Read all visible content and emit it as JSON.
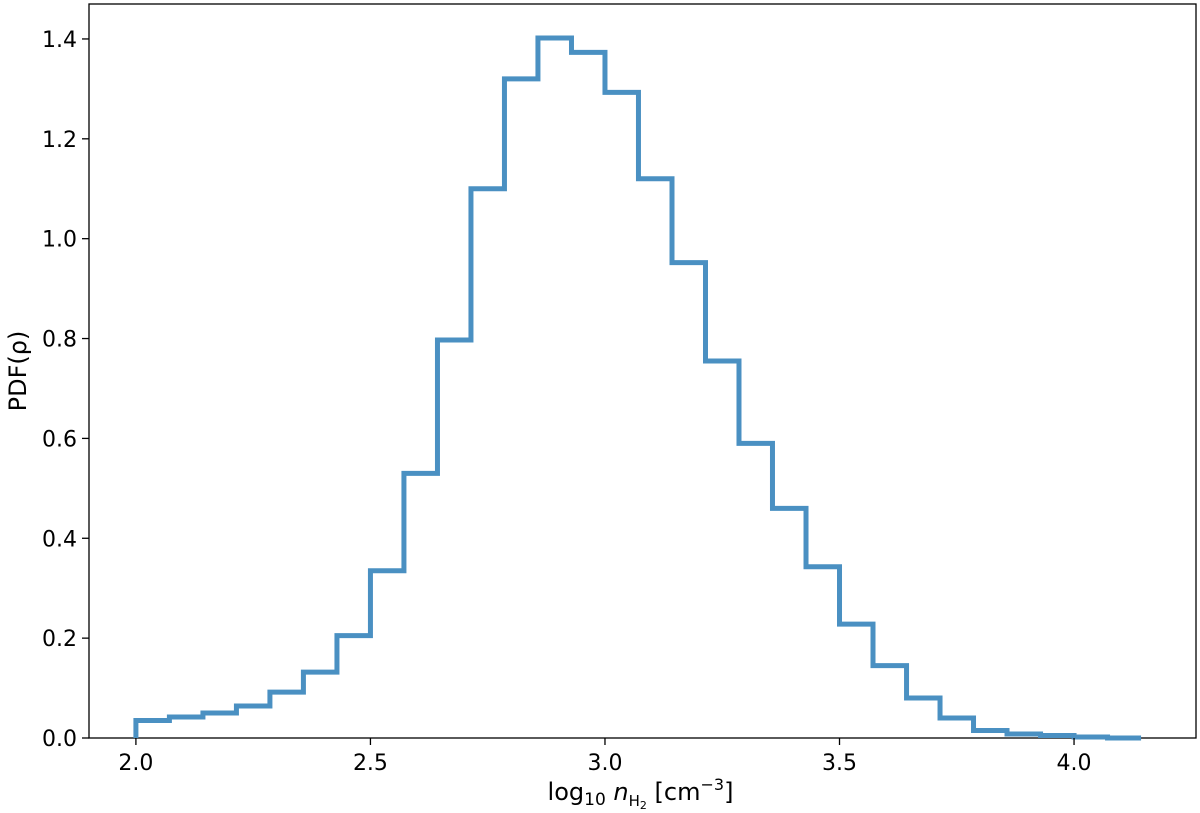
{
  "chart_data": {
    "type": "histogram",
    "style": "step",
    "color": "#4a90c2",
    "x_scale": "log10",
    "bin_edges": [
      2.0,
      2.0714,
      2.1429,
      2.2143,
      2.2857,
      2.3571,
      2.4286,
      2.5,
      2.5714,
      2.6429,
      2.7143,
      2.7857,
      2.8571,
      2.9286,
      3.0,
      3.0714,
      3.1429,
      3.2143,
      3.2857,
      3.3571,
      3.4286,
      3.5,
      3.5714,
      3.6429,
      3.7143,
      3.7857,
      3.8571,
      3.9286,
      4.0,
      4.0714,
      4.1429
    ],
    "values": [
      0.035,
      0.042,
      0.05,
      0.064,
      0.092,
      0.132,
      0.205,
      0.335,
      0.53,
      0.797,
      1.1,
      1.32,
      1.402,
      1.373,
      1.293,
      1.12,
      0.952,
      0.755,
      0.59,
      0.46,
      0.343,
      0.228,
      0.145,
      0.08,
      0.04,
      0.015,
      0.008,
      0.005,
      0.002,
      0.0
    ],
    "xlim": [
      1.9,
      4.26
    ],
    "ylim": [
      0.0,
      1.47
    ],
    "xticks": [
      2.0,
      2.5,
      3.0,
      3.5,
      4.0
    ],
    "xtick_labels": [
      "2.0",
      "2.5",
      "3.0",
      "3.5",
      "4.0"
    ],
    "yticks": [
      0.0,
      0.2,
      0.4,
      0.6,
      0.8,
      1.0,
      1.2,
      1.4
    ],
    "ytick_labels": [
      "0.0",
      "0.2",
      "0.4",
      "0.6",
      "0.8",
      "1.0",
      "1.2",
      "1.4"
    ],
    "xlabel": "log10 nH2 [cm−3]",
    "xlabel_parts": {
      "log": "log",
      "log_sub": "10",
      "n": "n",
      "n_sub": "H",
      "n_sub_sub": "2",
      "unit": "[cm",
      "unit_sup": "−3",
      "close": "]"
    },
    "ylabel": "PDF(ρ)",
    "grid": false,
    "legend": "none"
  }
}
